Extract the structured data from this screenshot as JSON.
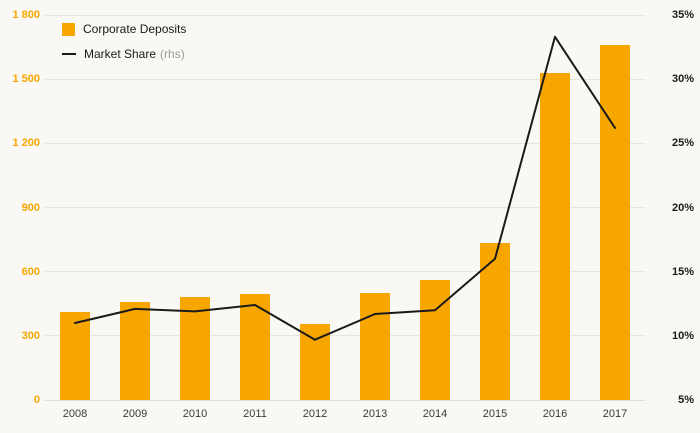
{
  "legend": {
    "series1_label": "Corporate Deposits",
    "series2_label": "Market Share",
    "series2_suffix": "(rhs)"
  },
  "colors": {
    "bar": "#f7a600",
    "line": "#1a1a1a",
    "background": "#f9f8f5",
    "grid": "#e6e5e1",
    "left_axis_text": "#f7a600",
    "right_axis_text": "#1a1a1a"
  },
  "chart_data": {
    "type": "bar",
    "subtype": "bar-with-line-overlay",
    "categories": [
      "2008",
      "2009",
      "2010",
      "2011",
      "2012",
      "2013",
      "2014",
      "2015",
      "2016",
      "2017"
    ],
    "series": [
      {
        "name": "Corporate Deposits",
        "type": "bar",
        "axis": "left",
        "values": [
          410,
          460,
          480,
          495,
          355,
          500,
          560,
          735,
          1530,
          1660
        ]
      },
      {
        "name": "Market Share",
        "type": "line",
        "axis": "right",
        "values": [
          11.0,
          12.1,
          11.9,
          12.4,
          9.7,
          11.7,
          12.0,
          16.0,
          33.3,
          26.2
        ]
      }
    ],
    "left_axis": {
      "min": 0,
      "max": 1800,
      "tick_step": 300,
      "tick_labels": [
        "0",
        "300",
        "600",
        "900",
        "1 200",
        "1 500",
        "1 800"
      ]
    },
    "right_axis": {
      "min": 5,
      "max": 35,
      "tick_step": 5,
      "tick_labels": [
        "5%",
        "10%",
        "15%",
        "20%",
        "25%",
        "30%",
        "35%"
      ],
      "unit": "%"
    },
    "grid": true,
    "legend_position": "top-left",
    "title": "",
    "xlabel": "",
    "ylabel": ""
  }
}
